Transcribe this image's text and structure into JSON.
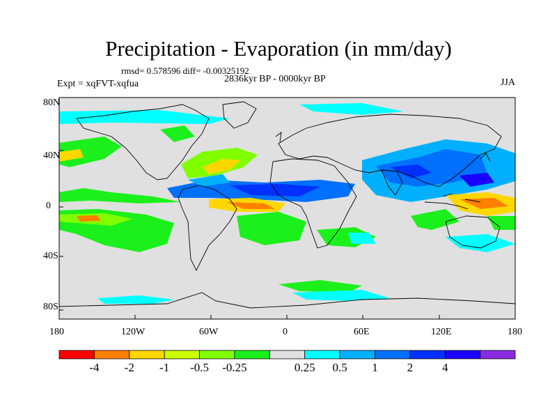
{
  "title": "Precipitation - Evaporation (in mm/day)",
  "stats_line": "rmsd= 0.578596 diff= -0.00325192",
  "period_line": "2836kyr BP - 0000kyr BP",
  "experiment_label": "Expt = xqFVT-xqfua",
  "season_label": "JJA",
  "y_ticks": [
    "80N",
    "40N",
    "0",
    "40S",
    "80S"
  ],
  "x_ticks": [
    "180",
    "120W",
    "60W",
    "0",
    "60E",
    "120E",
    "180"
  ],
  "colorbar": {
    "colors": [
      "#ff0000",
      "#ff8000",
      "#ffd700",
      "#ccff00",
      "#7fff00",
      "#1cf01c",
      "#e0e0e0",
      "#00ffff",
      "#00b0ff",
      "#0070ff",
      "#0030ff",
      "#1a00ff",
      "#8a2be2"
    ],
    "labels": [
      "-4",
      "-2",
      "-1",
      "-0.5",
      "-0.25",
      "0.25",
      "0.5",
      "1",
      "2",
      "4"
    ]
  }
}
